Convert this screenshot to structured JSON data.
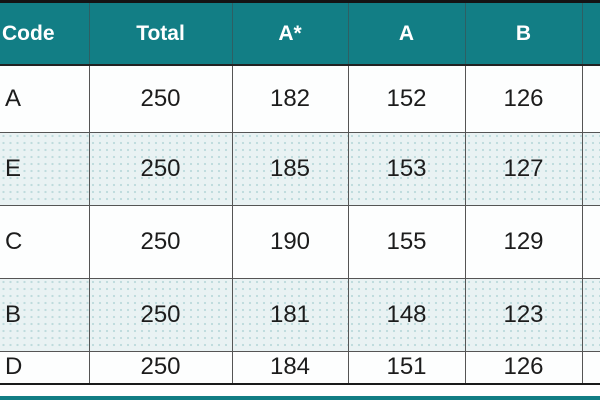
{
  "colors": {
    "header_bg": "#127E85",
    "header_text": "#FFFFFF",
    "row_bg": "#FDFEFE",
    "row_alt_bg": "#E9F2F3",
    "body_text": "#1C1C1C",
    "grid_border": "#555555",
    "outer_border": "#141414"
  },
  "table": {
    "columns": [
      {
        "label": "Code"
      },
      {
        "label": "Total"
      },
      {
        "label": "A*"
      },
      {
        "label": "A"
      },
      {
        "label": "B"
      },
      {
        "label": ""
      }
    ],
    "rows": [
      {
        "code": "A",
        "total": "250",
        "astar": "182",
        "a": "152",
        "b": "126"
      },
      {
        "code": "E",
        "total": "250",
        "astar": "185",
        "a": "153",
        "b": "127"
      },
      {
        "code": "C",
        "total": "250",
        "astar": "190",
        "a": "155",
        "b": "129"
      },
      {
        "code": "B",
        "total": "250",
        "astar": "181",
        "a": "148",
        "b": "123"
      },
      {
        "code": "D",
        "total": "250",
        "astar": "184",
        "a": "151",
        "b": "126"
      }
    ]
  },
  "chart_data": {
    "type": "table",
    "title": "",
    "columns": [
      "Code",
      "Total",
      "A*",
      "A",
      "B"
    ],
    "rows": [
      [
        "A",
        250,
        182,
        152,
        126
      ],
      [
        "E",
        250,
        185,
        153,
        127
      ],
      [
        "C",
        250,
        190,
        155,
        129
      ],
      [
        "B",
        250,
        181,
        148,
        123
      ],
      [
        "D",
        250,
        184,
        151,
        126
      ]
    ]
  }
}
